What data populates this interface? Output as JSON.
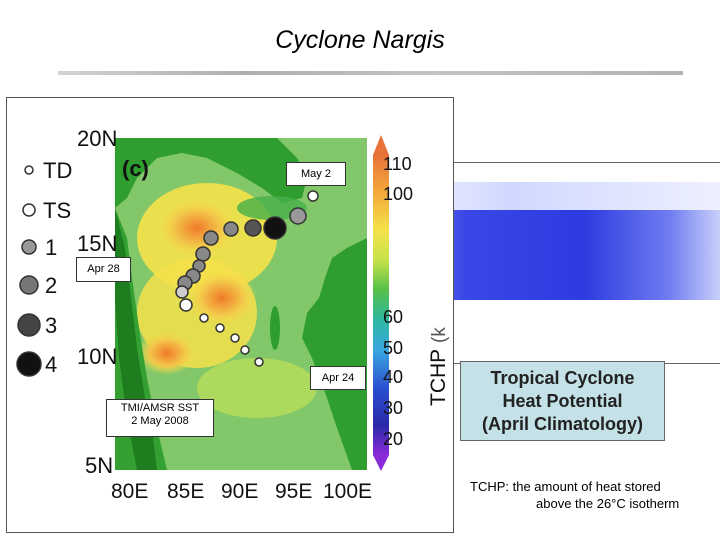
{
  "title": "Cyclone Nargis",
  "map": {
    "panel_label": "(c)",
    "lat_labels": [
      "20N",
      "15N",
      "10N",
      "5N"
    ],
    "lon_labels": [
      "80E",
      "85E",
      "90E",
      "95E",
      "100E"
    ],
    "legend": [
      "TD",
      "TS",
      "1",
      "2",
      "3",
      "4"
    ],
    "colorbar_ticks": [
      "110",
      "100",
      "60",
      "50",
      "40",
      "30",
      "20"
    ],
    "colorbar_label": "TCHP",
    "colorbar_unit_partial": "(k",
    "labels": {
      "may2": "May 2",
      "apr28": "Apr 28",
      "apr24": "Apr 24",
      "source_line1": "TMI/AMSR SST",
      "source_line2": "2 May 2008"
    }
  },
  "tchp_box": {
    "line1": "Tropical Cyclone",
    "line2": "Heat Potential",
    "line3": "(April Climatology)"
  },
  "note": {
    "line1": "TCHP: the amount of heat stored",
    "line2": "above the 26°C isotherm"
  },
  "colors": {
    "land": "#2f9e2f",
    "warm": "#f5e14a",
    "hot": "#f08a2a",
    "cool": "#7ec86a",
    "track": "#555555"
  }
}
